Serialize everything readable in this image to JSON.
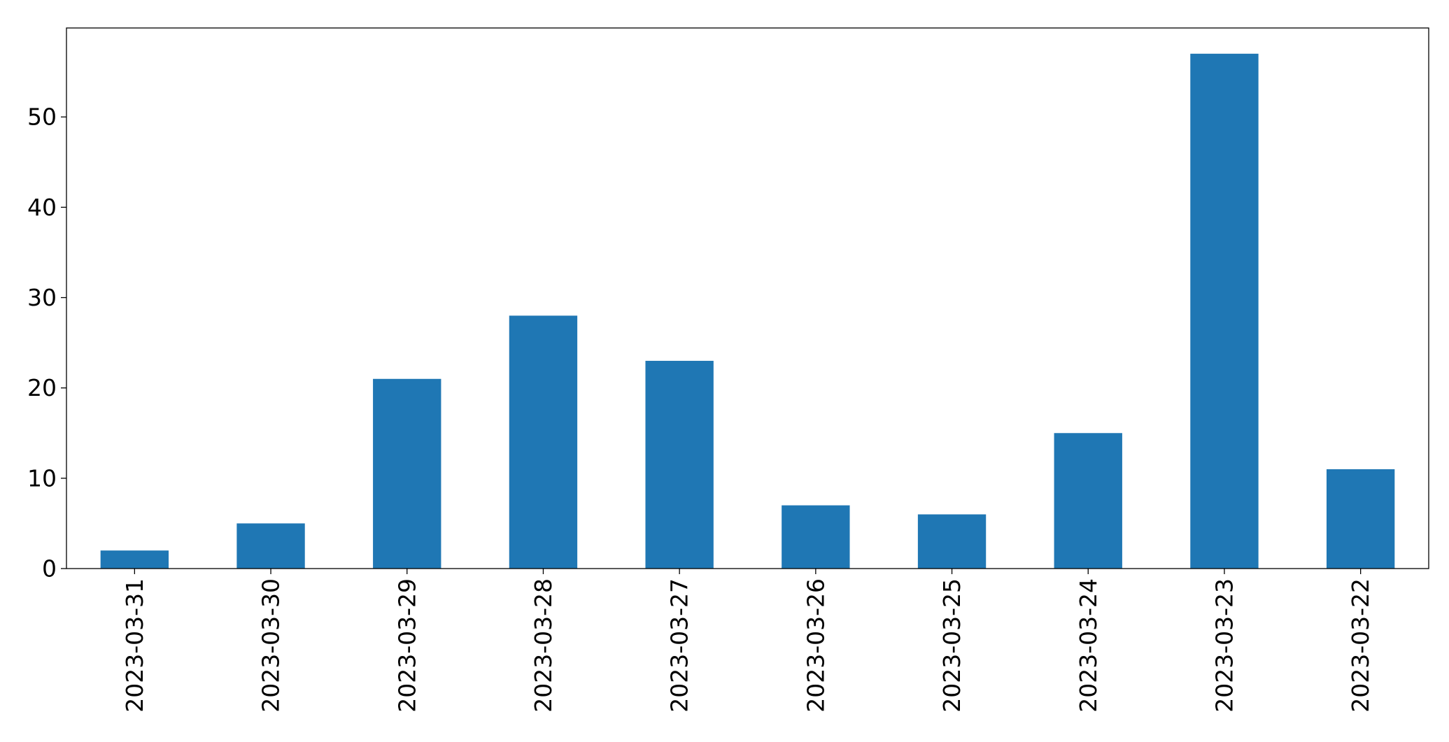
{
  "chart_data": {
    "type": "bar",
    "title": "",
    "xlabel": "",
    "ylabel": "",
    "categories": [
      "2023-03-31",
      "2023-03-30",
      "2023-03-29",
      "2023-03-28",
      "2023-03-27",
      "2023-03-26",
      "2023-03-25",
      "2023-03-24",
      "2023-03-23",
      "2023-03-22"
    ],
    "values": [
      2,
      5,
      21,
      28,
      23,
      7,
      6,
      15,
      57,
      11
    ],
    "ylim": [
      0,
      60
    ],
    "yticks": [
      0,
      10,
      20,
      30,
      40,
      50
    ],
    "bar_color": "#1f77b4",
    "grid": false,
    "legend": "none"
  }
}
